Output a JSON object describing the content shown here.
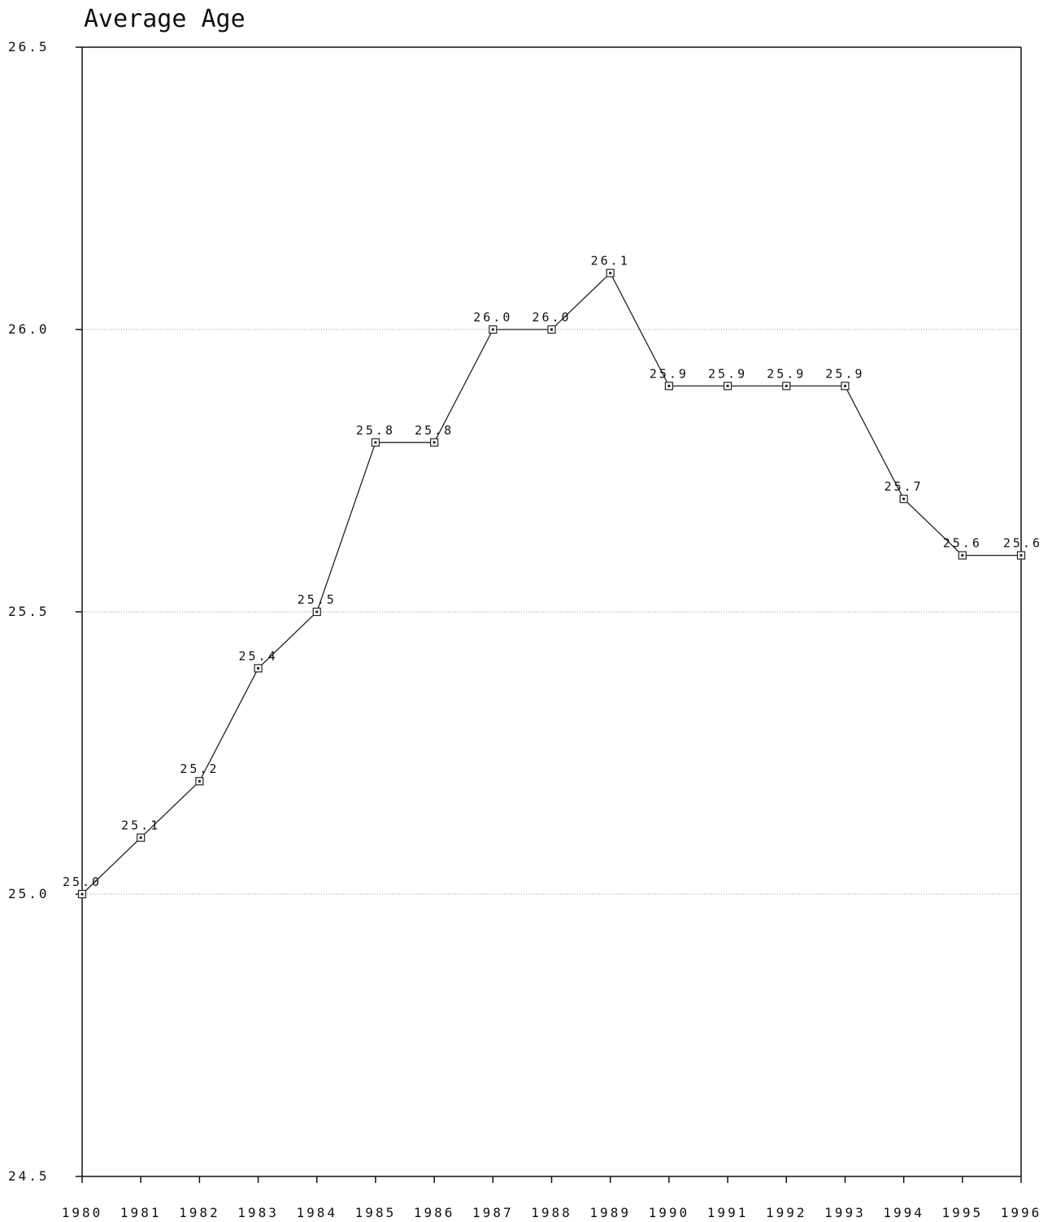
{
  "chart_data": {
    "type": "line",
    "title": "Average Age",
    "xlabel": "",
    "ylabel": "",
    "x": [
      "1980",
      "1981",
      "1982",
      "1983",
      "1984",
      "1985",
      "1986",
      "1987",
      "1988",
      "1989",
      "1990",
      "1991",
      "1992",
      "1993",
      "1994",
      "1995",
      "1996"
    ],
    "values": [
      25.0,
      25.1,
      25.2,
      25.4,
      25.5,
      25.8,
      25.8,
      26.0,
      26.0,
      26.1,
      25.9,
      25.9,
      25.9,
      25.9,
      25.7,
      25.6,
      25.6
    ],
    "data_labels": [
      "25.0",
      "25.1",
      "25.2",
      "25.4",
      "25.5",
      "25.8",
      "25.8",
      "26.0",
      "26.0",
      "26.1",
      "25.9",
      "25.9",
      "25.9",
      "25.9",
      "25.7",
      "25.6",
      "25.6"
    ],
    "ylim": [
      24.5,
      26.5
    ],
    "yticks": [
      "24.5",
      "25.0",
      "25.5",
      "26.0",
      "26.5"
    ],
    "grid": true,
    "legend": "none",
    "colors": {
      "line": "#222222",
      "axis": "#111111",
      "grid": "#9a9a9a",
      "marker": "#222222"
    }
  }
}
